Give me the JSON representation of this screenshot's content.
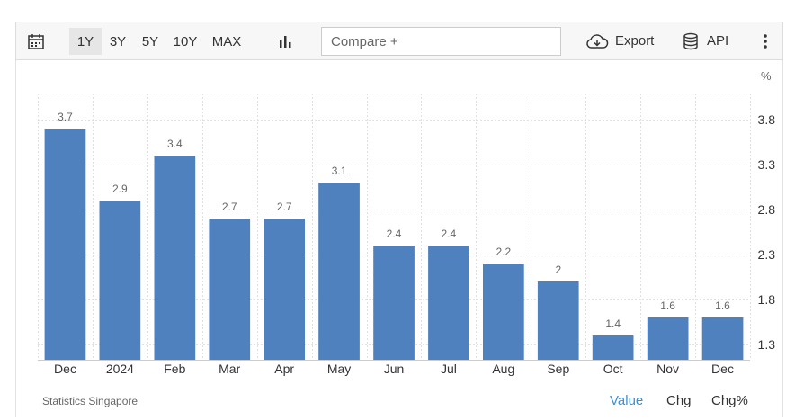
{
  "toolbar": {
    "ranges": [
      "1Y",
      "3Y",
      "5Y",
      "10Y",
      "MAX"
    ],
    "active_range": "1Y",
    "compare_placeholder": "Compare +",
    "export_label": "Export",
    "api_label": "API"
  },
  "chart_data": {
    "type": "bar",
    "categories": [
      "Dec",
      "2024",
      "Feb",
      "Mar",
      "Apr",
      "May",
      "Jun",
      "Jul",
      "Aug",
      "Sep",
      "Oct",
      "Nov",
      "Dec"
    ],
    "values": [
      3.7,
      2.9,
      3.4,
      2.7,
      2.7,
      3.1,
      2.4,
      2.4,
      2.2,
      2,
      1.4,
      1.6,
      1.6
    ],
    "data_labels": [
      "3.7",
      "2.9",
      "3.4",
      "2.7",
      "2.7",
      "3.1",
      "2.4",
      "2.4",
      "2.2",
      "2",
      "1.4",
      "1.6",
      "1.6"
    ],
    "y_ticks": [
      1.3,
      1.8,
      2.3,
      2.8,
      3.3,
      3.8
    ],
    "ylim": [
      1.13,
      4.09
    ],
    "unit": "%",
    "y_axis_position": "right",
    "grid": true,
    "bar_color": "#4e81bd"
  },
  "footer": {
    "source": "Statistics Singapore",
    "views": [
      "Value",
      "Chg",
      "Chg%"
    ],
    "active_view": "Value"
  }
}
